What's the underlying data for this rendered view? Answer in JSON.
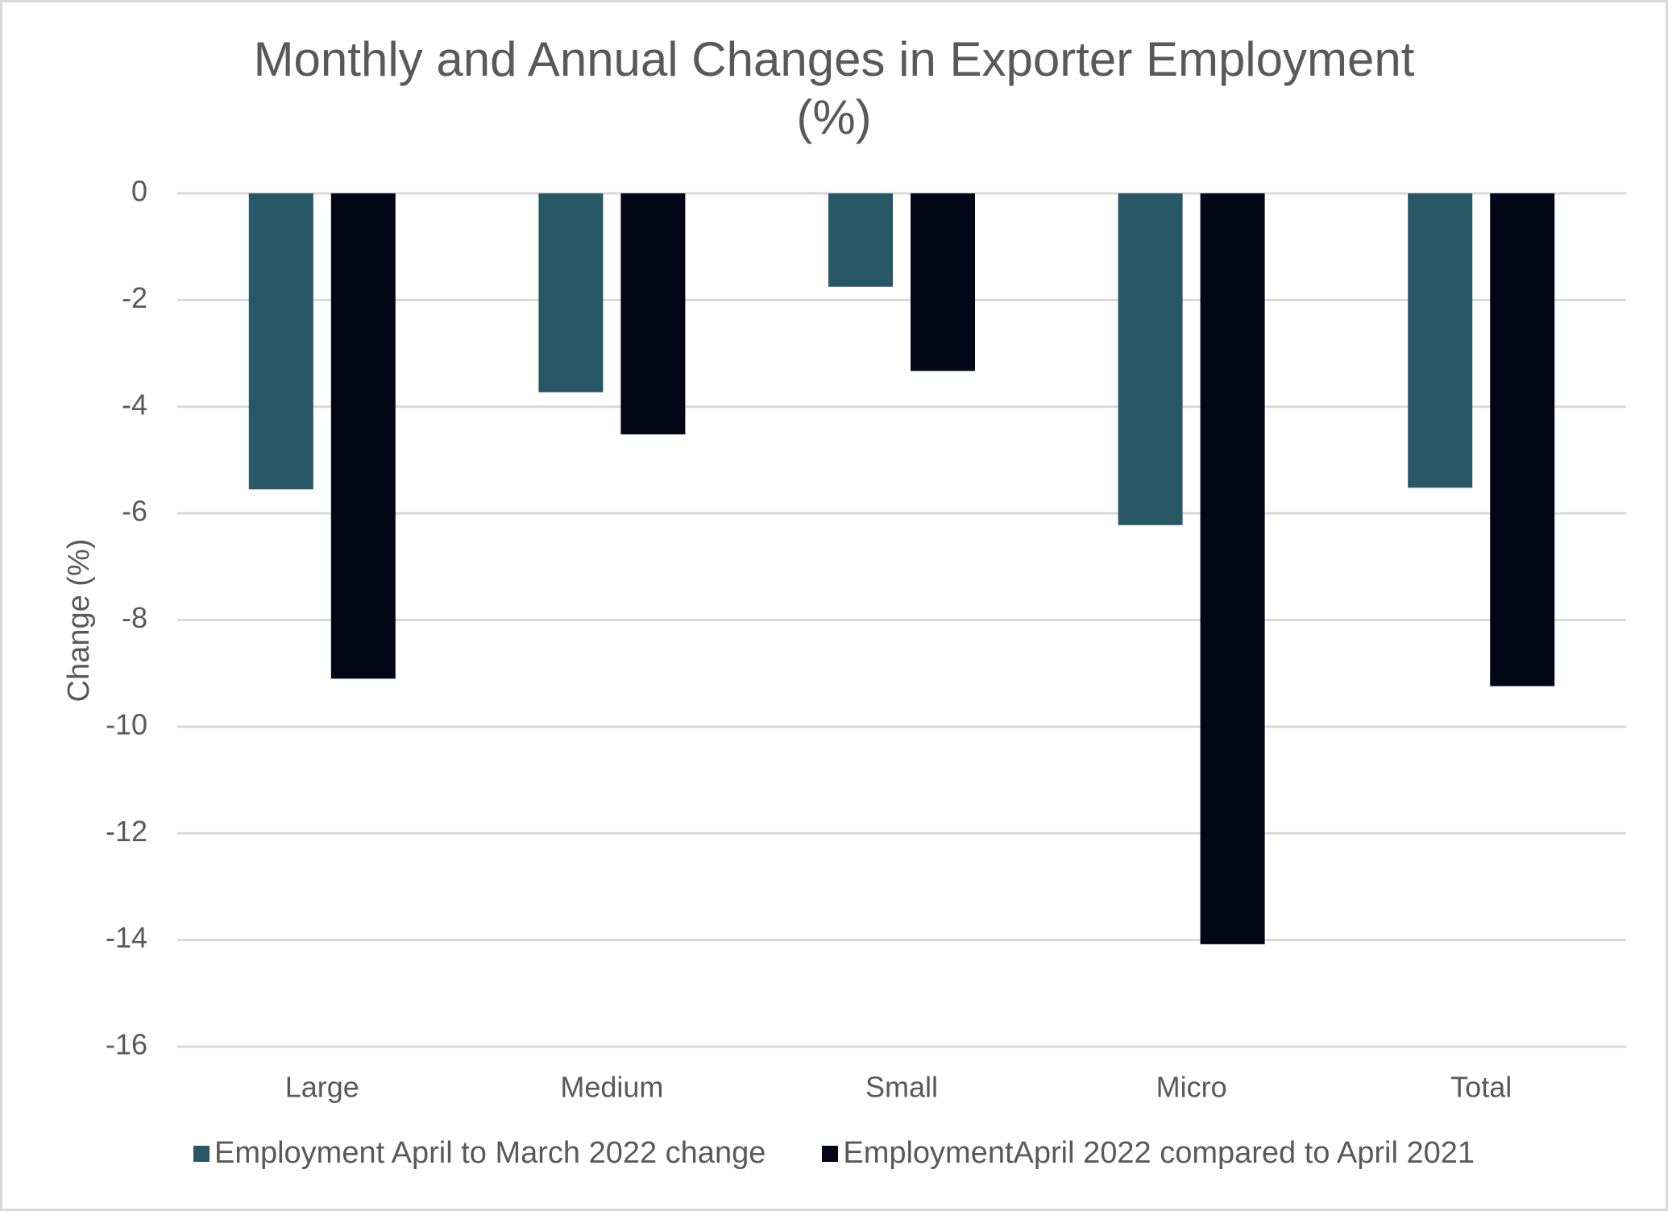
{
  "chart_data": {
    "type": "bar",
    "title": "Monthly and Annual Changes in Exporter Employment (%)",
    "title_lines": [
      "Monthly and Annual Changes in Exporter Employment",
      "(%)"
    ],
    "xlabel": "",
    "ylabel": "Change (%)",
    "ylim": [
      -16,
      0
    ],
    "yticks": [
      0,
      -2,
      -4,
      -6,
      -8,
      -10,
      -12,
      -14,
      -16
    ],
    "grid": true,
    "legend_position": "bottom",
    "categories": [
      "Large",
      "Medium",
      "Small",
      "Micro",
      "Total"
    ],
    "series": [
      {
        "name": "Employment April to March 2022 change",
        "color": "#285766",
        "values": [
          -5.55,
          -3.73,
          -1.75,
          -6.22,
          -5.52
        ]
      },
      {
        "name": "EmploymentApril 2022 compared to April 2021",
        "color": "#020617",
        "values": [
          -9.1,
          -4.52,
          -3.33,
          -14.08,
          -9.24
        ]
      }
    ]
  }
}
